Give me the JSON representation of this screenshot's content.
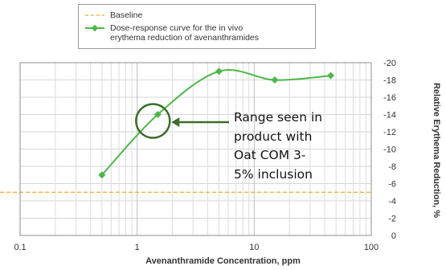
{
  "chart_data": {
    "type": "line",
    "xlabel": "Avenanthramide Concentration, ppm",
    "ylabel": "Relative Erythema Reduction, %",
    "x_scale": "log",
    "xlim": [
      0.1,
      100
    ],
    "ylim": [
      0,
      -20
    ],
    "x_ticks": [
      "0.1",
      "1",
      "10",
      "100"
    ],
    "y_ticks": [
      "0",
      "-2",
      "-4",
      "-6",
      "-8",
      "-10",
      "-12",
      "-14",
      "-16",
      "-18",
      "-20"
    ],
    "grid": true,
    "legend_position": "top-left",
    "series": [
      {
        "name": "Dose-response curve for the in vivo erythema reduction of avenanthramides",
        "color": "#4cb848",
        "x": [
          0.5,
          1.5,
          5,
          15,
          45
        ],
        "y": [
          -7,
          -14,
          -19,
          -18,
          -18.5
        ]
      },
      {
        "name": "Baseline",
        "color": "#f5a623",
        "style": "dashed",
        "y": -5
      }
    ],
    "legend": {
      "baseline_label": "Baseline",
      "curve_label_line1": "Dose-response curve for the in vivo",
      "curve_label_line2": "erythema reduction of avenanthramides"
    },
    "annotation": {
      "lines": [
        "Range seen in",
        "product with",
        "Oat COM 3-",
        "5% inclusion"
      ],
      "highlight_x": 1.5,
      "highlight_y": -14,
      "color": "#3b6e2a"
    }
  }
}
